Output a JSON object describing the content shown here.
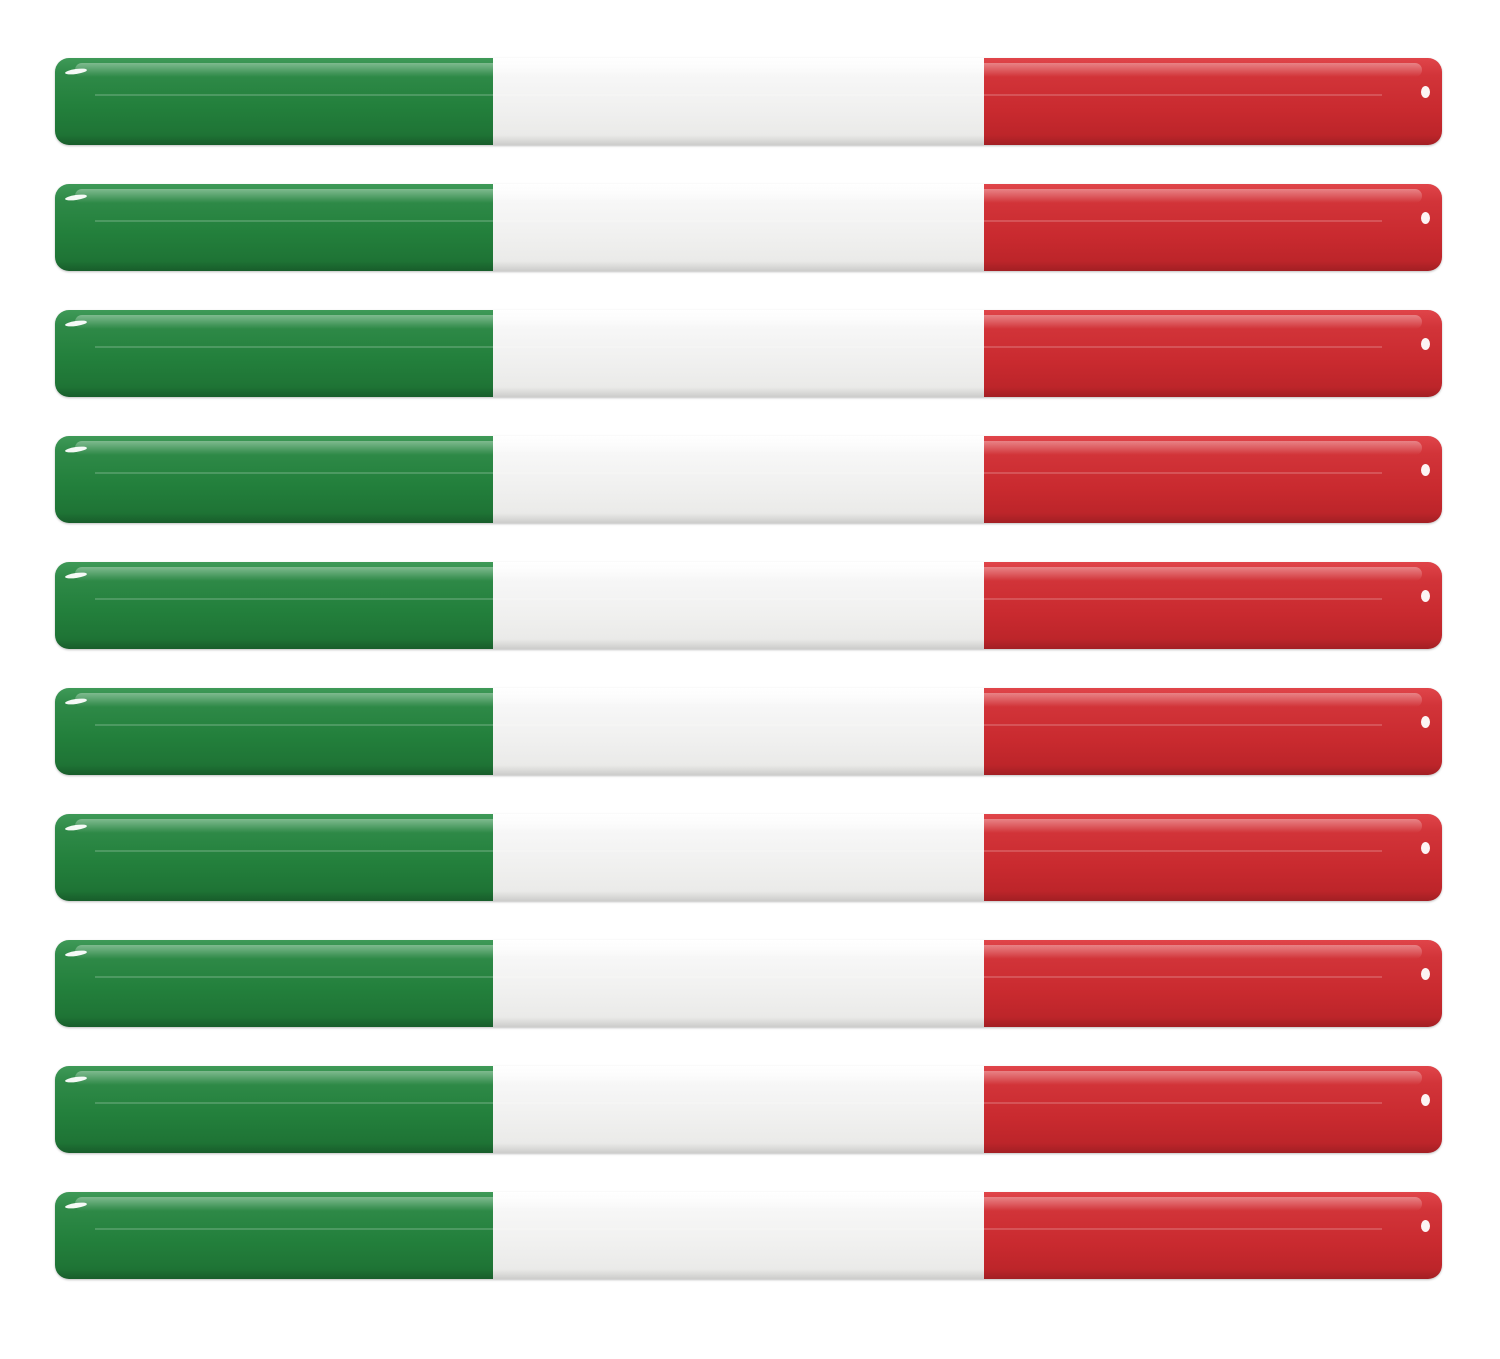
{
  "colors": {
    "green": "#23803c",
    "white": "#f2f2f1",
    "red": "#c92a2f",
    "background": "#ffffff"
  },
  "stickers": [
    {
      "type": "italian-flag-stripe"
    },
    {
      "type": "italian-flag-stripe"
    },
    {
      "type": "italian-flag-stripe"
    },
    {
      "type": "italian-flag-stripe"
    },
    {
      "type": "italian-flag-stripe"
    },
    {
      "type": "italian-flag-stripe"
    },
    {
      "type": "italian-flag-stripe"
    },
    {
      "type": "italian-flag-stripe"
    },
    {
      "type": "italian-flag-stripe"
    },
    {
      "type": "italian-flag-stripe"
    }
  ]
}
